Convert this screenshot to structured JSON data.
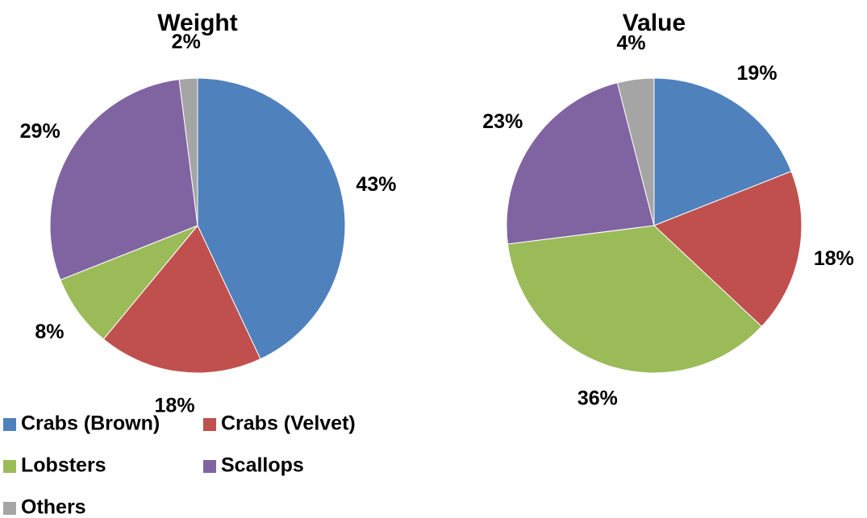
{
  "chart_data": [
    {
      "type": "pie",
      "title": "Weight",
      "categories": [
        "Crabs (Brown)",
        "Crabs (Velvet)",
        "Lobsters",
        "Scallops",
        "Others"
      ],
      "values": [
        43,
        18,
        8,
        29,
        2
      ],
      "value_labels": [
        "43%",
        "18%",
        "8%",
        "29%",
        "2%"
      ],
      "colors": [
        "#4f81bd",
        "#c0504d",
        "#9bbb59",
        "#8064a2",
        "#a5a5a5"
      ],
      "legend": "bottom-left"
    },
    {
      "type": "pie",
      "title": "Value",
      "categories": [
        "Crabs (Brown)",
        "Crabs (Velvet)",
        "Lobsters",
        "Scallops",
        "Others"
      ],
      "values": [
        19,
        18,
        36,
        23,
        4
      ],
      "value_labels": [
        "19%",
        "18%",
        "36%",
        "23%",
        "4%"
      ],
      "colors": [
        "#4f81bd",
        "#c0504d",
        "#9bbb59",
        "#8064a2",
        "#a5a5a5"
      ]
    }
  ]
}
